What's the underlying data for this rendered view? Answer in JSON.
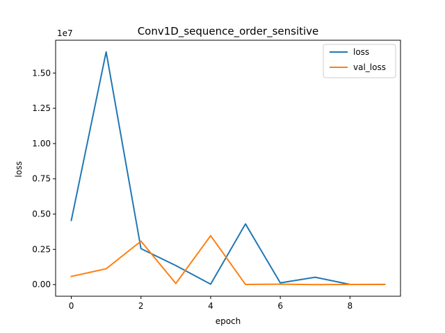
{
  "chart_data": {
    "type": "line",
    "title": "Conv1D_sequence_order_sensitive",
    "xlabel": "epoch",
    "ylabel": "loss",
    "y_offset_label": "1e7",
    "x": [
      0,
      1,
      2,
      3,
      4,
      5,
      6,
      7,
      8,
      9
    ],
    "series": [
      {
        "name": "loss",
        "color": "#1f77b4",
        "values": [
          4550000,
          16500000,
          2550000,
          1350000,
          30000,
          4300000,
          120000,
          520000,
          10000,
          10000
        ]
      },
      {
        "name": "val_loss",
        "color": "#ff7f0e",
        "values": [
          580000,
          1120000,
          3080000,
          80000,
          3470000,
          10000,
          30000,
          0,
          10000,
          20000
        ]
      }
    ],
    "xlim": [
      -0.45,
      9.45
    ],
    "ylim": [
      -825000,
      17325000
    ],
    "xticks": [
      0,
      2,
      4,
      6,
      8
    ],
    "xtick_labels": [
      "0",
      "2",
      "4",
      "6",
      "8"
    ],
    "yticks": [
      0,
      2500000,
      5000000,
      7500000,
      10000000,
      12500000,
      15000000
    ],
    "ytick_labels": [
      "0.00",
      "0.25",
      "0.50",
      "0.75",
      "1.00",
      "1.25",
      "1.50"
    ],
    "grid": false,
    "legend_position": "upper right"
  }
}
